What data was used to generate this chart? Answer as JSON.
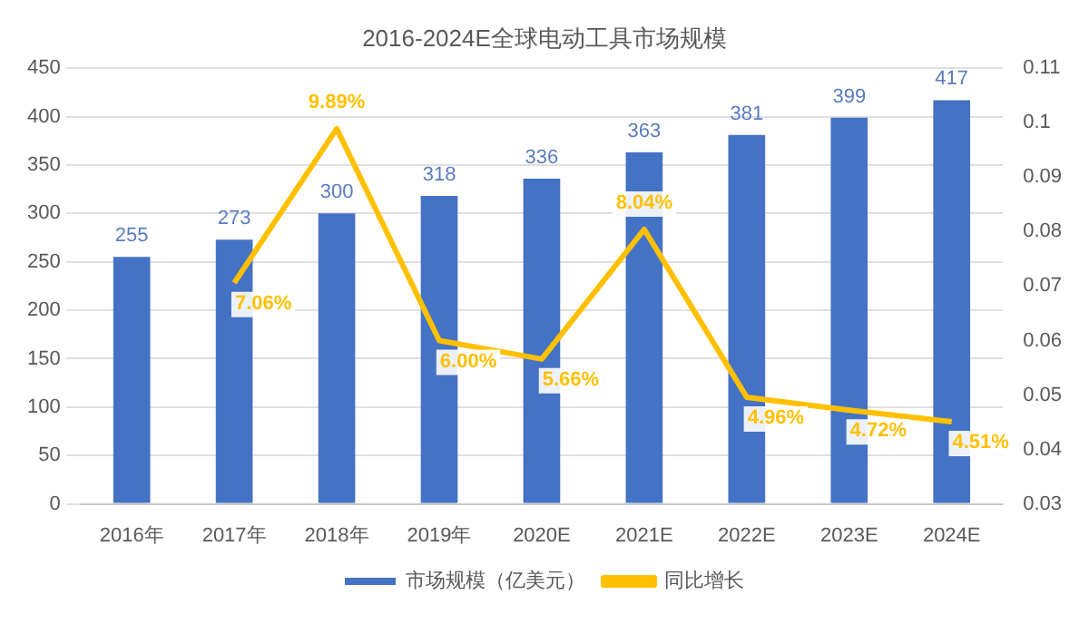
{
  "chart_data": {
    "type": "bar",
    "title": "2016-2024E全球电动工具市场规模",
    "categories": [
      "2016年",
      "2017年",
      "2018年",
      "2019年",
      "2020E",
      "2021E",
      "2022E",
      "2023E",
      "2024E"
    ],
    "series": [
      {
        "name": "市场规模（亿美元）",
        "color": "#4472c4",
        "values": [
          255,
          273,
          300,
          318,
          336,
          363,
          381,
          399,
          417
        ],
        "value_labels": [
          "255",
          "273",
          "300",
          "318",
          "336",
          "363",
          "381",
          "399",
          "417"
        ]
      },
      {
        "name": "同比增长",
        "type": "line",
        "axis": "y2",
        "color": "#ffc000",
        "values": [
          null,
          0.0706,
          0.0989,
          0.06,
          0.0566,
          0.0804,
          0.0496,
          0.0472,
          0.0451
        ],
        "value_labels": [
          null,
          "7.06%",
          "9.89%",
          "6.00%",
          "5.66%",
          "8.04%",
          "4.96%",
          "4.72%",
          "4.51%"
        ]
      }
    ],
    "ylim": [
      0,
      450
    ],
    "yticks": [
      0,
      50,
      100,
      150,
      200,
      250,
      300,
      350,
      400,
      450
    ],
    "y2lim": [
      0.03,
      0.11
    ],
    "y2ticks": [
      0.03,
      0.04,
      0.05,
      0.06,
      0.07,
      0.08,
      0.09,
      0.1,
      0.11
    ],
    "grid": "y",
    "legend": "bottom",
    "marker": "none",
    "line_style": "solid"
  }
}
